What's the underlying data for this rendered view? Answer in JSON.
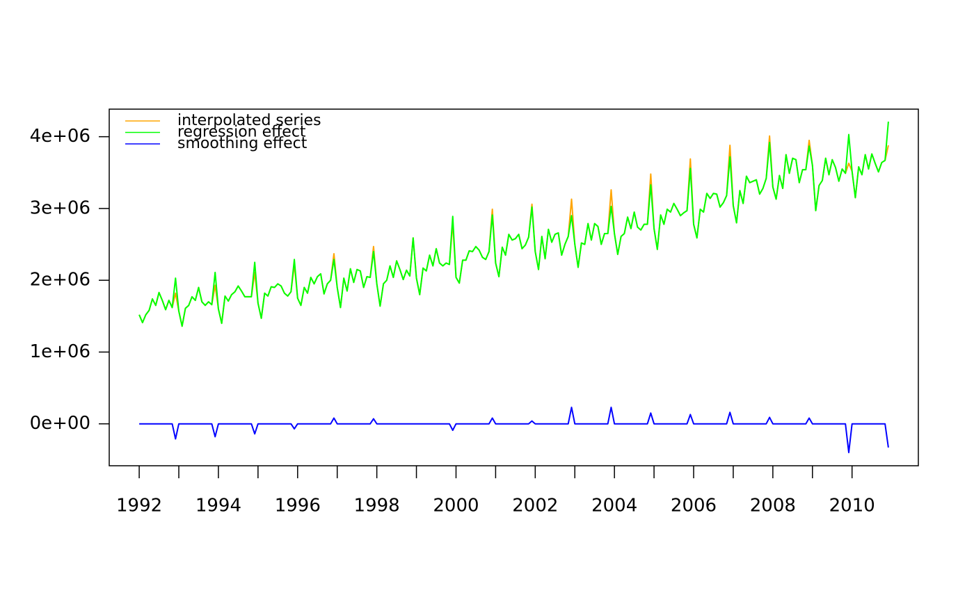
{
  "chart_data": {
    "type": "line",
    "x": [
      1992,
      1992.083,
      1992.167,
      1992.25,
      1992.333,
      1992.417,
      1992.5,
      1992.583,
      1992.667,
      1992.75,
      1992.833,
      1992.917,
      1993,
      1993.083,
      1993.167,
      1993.25,
      1993.333,
      1993.417,
      1993.5,
      1993.583,
      1993.667,
      1993.75,
      1993.833,
      1993.917,
      1994,
      1994.083,
      1994.167,
      1994.25,
      1994.333,
      1994.417,
      1994.5,
      1994.583,
      1994.667,
      1994.75,
      1994.833,
      1994.917,
      1995,
      1995.083,
      1995.167,
      1995.25,
      1995.333,
      1995.417,
      1995.5,
      1995.583,
      1995.667,
      1995.75,
      1995.833,
      1995.917,
      1996,
      1996.083,
      1996.167,
      1996.25,
      1996.333,
      1996.417,
      1996.5,
      1996.583,
      1996.667,
      1996.75,
      1996.833,
      1996.917,
      1997,
      1997.083,
      1997.167,
      1997.25,
      1997.333,
      1997.417,
      1997.5,
      1997.583,
      1997.667,
      1997.75,
      1997.833,
      1997.917,
      1998,
      1998.083,
      1998.167,
      1998.25,
      1998.333,
      1998.417,
      1998.5,
      1998.583,
      1998.667,
      1998.75,
      1998.833,
      1998.917,
      1999,
      1999.083,
      1999.167,
      1999.25,
      1999.333,
      1999.417,
      1999.5,
      1999.583,
      1999.667,
      1999.75,
      1999.833,
      1999.917,
      2000,
      2000.083,
      2000.167,
      2000.25,
      2000.333,
      2000.417,
      2000.5,
      2000.583,
      2000.667,
      2000.75,
      2000.833,
      2000.917,
      2001,
      2001.083,
      2001.167,
      2001.25,
      2001.333,
      2001.417,
      2001.5,
      2001.583,
      2001.667,
      2001.75,
      2001.833,
      2001.917,
      2002,
      2002.083,
      2002.167,
      2002.25,
      2002.333,
      2002.417,
      2002.5,
      2002.583,
      2002.667,
      2002.75,
      2002.833,
      2002.917,
      2003,
      2003.083,
      2003.167,
      2003.25,
      2003.333,
      2003.417,
      2003.5,
      2003.583,
      2003.667,
      2003.75,
      2003.833,
      2003.917,
      2004,
      2004.083,
      2004.167,
      2004.25,
      2004.333,
      2004.417,
      2004.5,
      2004.583,
      2004.667,
      2004.75,
      2004.833,
      2004.917,
      2005,
      2005.083,
      2005.167,
      2005.25,
      2005.333,
      2005.417,
      2005.5,
      2005.583,
      2005.667,
      2005.75,
      2005.833,
      2005.917,
      2006,
      2006.083,
      2006.167,
      2006.25,
      2006.333,
      2006.417,
      2006.5,
      2006.583,
      2006.667,
      2006.75,
      2006.833,
      2006.917,
      2007,
      2007.083,
      2007.167,
      2007.25,
      2007.333,
      2007.417,
      2007.5,
      2007.583,
      2007.667,
      2007.75,
      2007.833,
      2007.917,
      2008,
      2008.083,
      2008.167,
      2008.25,
      2008.333,
      2008.417,
      2008.5,
      2008.583,
      2008.667,
      2008.75,
      2008.833,
      2008.917,
      2009,
      2009.083,
      2009.167,
      2009.25,
      2009.333,
      2009.417,
      2009.5,
      2009.583,
      2009.667,
      2009.75,
      2009.833,
      2009.917,
      2010,
      2010.083,
      2010.167,
      2010.25,
      2010.333,
      2010.417,
      2010.5,
      2010.583,
      2010.667,
      2010.75,
      2010.833,
      2010.917
    ],
    "series": [
      {
        "name": "interpolated series",
        "color": "#ffa500",
        "values": [
          1520000,
          1410000,
          1520000,
          1580000,
          1740000,
          1650000,
          1830000,
          1720000,
          1590000,
          1720000,
          1620000,
          1820000,
          1570000,
          1360000,
          1610000,
          1650000,
          1770000,
          1720000,
          1900000,
          1700000,
          1650000,
          1700000,
          1660000,
          1930000,
          1600000,
          1400000,
          1780000,
          1710000,
          1800000,
          1840000,
          1920000,
          1850000,
          1770000,
          1770000,
          1770000,
          2110000,
          1680000,
          1470000,
          1820000,
          1780000,
          1910000,
          1900000,
          1950000,
          1920000,
          1820000,
          1780000,
          1840000,
          2220000,
          1750000,
          1650000,
          1900000,
          1820000,
          2040000,
          1950000,
          2050000,
          2090000,
          1810000,
          1950000,
          2000000,
          2370000,
          1900000,
          1620000,
          2030000,
          1850000,
          2160000,
          1970000,
          2150000,
          2130000,
          1900000,
          2050000,
          2040000,
          2470000,
          1950000,
          1640000,
          1950000,
          2000000,
          2200000,
          2040000,
          2270000,
          2150000,
          2010000,
          2140000,
          2060000,
          2590000,
          2030000,
          1800000,
          2170000,
          2130000,
          2350000,
          2200000,
          2440000,
          2240000,
          2200000,
          2240000,
          2220000,
          2800000,
          2040000,
          1960000,
          2280000,
          2280000,
          2410000,
          2400000,
          2470000,
          2420000,
          2320000,
          2290000,
          2400000,
          2990000,
          2240000,
          2050000,
          2460000,
          2350000,
          2640000,
          2560000,
          2580000,
          2640000,
          2440000,
          2490000,
          2600000,
          3060000,
          2400000,
          2150000,
          2610000,
          2300000,
          2710000,
          2530000,
          2640000,
          2660000,
          2350000,
          2500000,
          2610000,
          3130000,
          2500000,
          2180000,
          2520000,
          2500000,
          2790000,
          2560000,
          2790000,
          2750000,
          2500000,
          2650000,
          2650000,
          3260000,
          2650000,
          2360000,
          2610000,
          2650000,
          2880000,
          2720000,
          2950000,
          2740000,
          2700000,
          2780000,
          2780000,
          3480000,
          2720000,
          2430000,
          2910000,
          2780000,
          2990000,
          2950000,
          3070000,
          2990000,
          2900000,
          2940000,
          2970000,
          3690000,
          2780000,
          2590000,
          2990000,
          2950000,
          3210000,
          3140000,
          3210000,
          3200000,
          3020000,
          3080000,
          3180000,
          3880000,
          3040000,
          2800000,
          3250000,
          3070000,
          3450000,
          3360000,
          3380000,
          3400000,
          3200000,
          3280000,
          3420000,
          4010000,
          3300000,
          3130000,
          3460000,
          3280000,
          3750000,
          3490000,
          3700000,
          3680000,
          3360000,
          3540000,
          3540000,
          3950000,
          3600000,
          2970000,
          3320000,
          3390000,
          3700000,
          3470000,
          3680000,
          3570000,
          3380000,
          3550000,
          3490000,
          3630000,
          3520000,
          3150000,
          3580000,
          3470000,
          3750000,
          3550000,
          3760000,
          3630000,
          3510000,
          3640000,
          3670000,
          3880000
        ]
      },
      {
        "name": "regression effect",
        "color": "#00ff00",
        "values": [
          1520000,
          1410000,
          1520000,
          1580000,
          1740000,
          1650000,
          1830000,
          1720000,
          1590000,
          1720000,
          1620000,
          2030000,
          1570000,
          1360000,
          1610000,
          1650000,
          1770000,
          1720000,
          1900000,
          1700000,
          1650000,
          1700000,
          1660000,
          2110000,
          1600000,
          1400000,
          1780000,
          1710000,
          1800000,
          1840000,
          1920000,
          1850000,
          1770000,
          1770000,
          1770000,
          2250000,
          1680000,
          1470000,
          1820000,
          1780000,
          1910000,
          1900000,
          1950000,
          1920000,
          1820000,
          1780000,
          1840000,
          2290000,
          1750000,
          1650000,
          1900000,
          1820000,
          2040000,
          1950000,
          2050000,
          2090000,
          1810000,
          1950000,
          2000000,
          2290000,
          1900000,
          1620000,
          2030000,
          1850000,
          2160000,
          1970000,
          2150000,
          2130000,
          1900000,
          2050000,
          2040000,
          2400000,
          1950000,
          1640000,
          1950000,
          2000000,
          2200000,
          2040000,
          2270000,
          2150000,
          2010000,
          2140000,
          2060000,
          2590000,
          2030000,
          1800000,
          2170000,
          2130000,
          2350000,
          2200000,
          2440000,
          2240000,
          2200000,
          2240000,
          2220000,
          2890000,
          2040000,
          1960000,
          2280000,
          2280000,
          2410000,
          2400000,
          2470000,
          2420000,
          2320000,
          2290000,
          2400000,
          2910000,
          2240000,
          2050000,
          2460000,
          2350000,
          2640000,
          2560000,
          2580000,
          2640000,
          2440000,
          2490000,
          2600000,
          3020000,
          2400000,
          2150000,
          2610000,
          2300000,
          2710000,
          2530000,
          2640000,
          2660000,
          2350000,
          2500000,
          2610000,
          2900000,
          2500000,
          2180000,
          2520000,
          2500000,
          2790000,
          2560000,
          2790000,
          2750000,
          2500000,
          2650000,
          2650000,
          3030000,
          2650000,
          2360000,
          2610000,
          2650000,
          2880000,
          2720000,
          2950000,
          2740000,
          2700000,
          2780000,
          2780000,
          3330000,
          2720000,
          2430000,
          2910000,
          2780000,
          2990000,
          2950000,
          3070000,
          2990000,
          2900000,
          2940000,
          2970000,
          3560000,
          2780000,
          2590000,
          2990000,
          2950000,
          3210000,
          3140000,
          3210000,
          3200000,
          3020000,
          3080000,
          3180000,
          3720000,
          3040000,
          2800000,
          3250000,
          3070000,
          3450000,
          3360000,
          3380000,
          3400000,
          3200000,
          3280000,
          3420000,
          3920000,
          3300000,
          3130000,
          3460000,
          3280000,
          3750000,
          3490000,
          3700000,
          3680000,
          3360000,
          3540000,
          3540000,
          3870000,
          3600000,
          2970000,
          3320000,
          3390000,
          3700000,
          3470000,
          3680000,
          3570000,
          3380000,
          3550000,
          3490000,
          4030000,
          3520000,
          3150000,
          3580000,
          3470000,
          3750000,
          3550000,
          3760000,
          3630000,
          3510000,
          3640000,
          3670000,
          4210000
        ]
      },
      {
        "name": "smoothing effect",
        "color": "#0000ff",
        "values": [
          0,
          0,
          0,
          0,
          0,
          0,
          0,
          0,
          0,
          0,
          0,
          -210000,
          0,
          0,
          0,
          0,
          0,
          0,
          0,
          0,
          0,
          0,
          0,
          -180000,
          0,
          0,
          0,
          0,
          0,
          0,
          0,
          0,
          0,
          0,
          0,
          -140000,
          0,
          0,
          0,
          0,
          0,
          0,
          0,
          0,
          0,
          0,
          0,
          -70000,
          0,
          0,
          0,
          0,
          0,
          0,
          0,
          0,
          0,
          0,
          0,
          80000,
          0,
          0,
          0,
          0,
          0,
          0,
          0,
          0,
          0,
          0,
          0,
          70000,
          0,
          0,
          0,
          0,
          0,
          0,
          0,
          0,
          0,
          0,
          0,
          0,
          0,
          0,
          0,
          0,
          0,
          0,
          0,
          0,
          0,
          0,
          0,
          -90000,
          0,
          0,
          0,
          0,
          0,
          0,
          0,
          0,
          0,
          0,
          0,
          80000,
          0,
          0,
          0,
          0,
          0,
          0,
          0,
          0,
          0,
          0,
          0,
          40000,
          0,
          0,
          0,
          0,
          0,
          0,
          0,
          0,
          0,
          0,
          0,
          230000,
          0,
          0,
          0,
          0,
          0,
          0,
          0,
          0,
          0,
          0,
          0,
          230000,
          0,
          0,
          0,
          0,
          0,
          0,
          0,
          0,
          0,
          0,
          0,
          150000,
          0,
          0,
          0,
          0,
          0,
          0,
          0,
          0,
          0,
          0,
          0,
          130000,
          0,
          0,
          0,
          0,
          0,
          0,
          0,
          0,
          0,
          0,
          0,
          160000,
          0,
          0,
          0,
          0,
          0,
          0,
          0,
          0,
          0,
          0,
          0,
          90000,
          0,
          0,
          0,
          0,
          0,
          0,
          0,
          0,
          0,
          0,
          0,
          80000,
          0,
          0,
          0,
          0,
          0,
          0,
          0,
          0,
          0,
          0,
          0,
          -400000,
          0,
          0,
          0,
          0,
          0,
          0,
          0,
          0,
          0,
          0,
          0,
          -330000
        ]
      }
    ],
    "xlim": [
      1991.243,
      2011.674
    ],
    "xticks": [
      1992,
      1994,
      1996,
      1998,
      2000,
      2002,
      2004,
      2006,
      2008,
      2010
    ],
    "xticks_minor": [
      1993,
      1995,
      1997,
      1999,
      2001,
      2003,
      2005,
      2007,
      2009
    ],
    "ylim": [
      -584000,
      4384000
    ],
    "yticks": [
      {
        "value": 0,
        "label": "0e+00"
      },
      {
        "value": 1000000,
        "label": "1e+06"
      },
      {
        "value": 2000000,
        "label": "2e+06"
      },
      {
        "value": 3000000,
        "label": "3e+06"
      },
      {
        "value": 4000000,
        "label": "4e+06"
      }
    ],
    "legend": "topleft",
    "grid": false
  }
}
